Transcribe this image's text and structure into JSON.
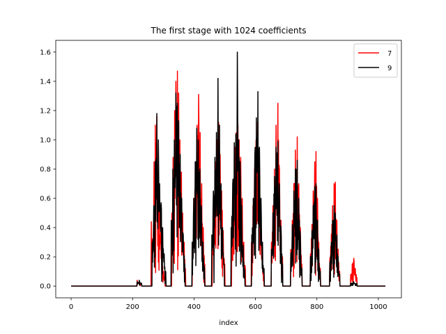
{
  "chart_data": {
    "type": "line",
    "title": "The first stage with 1024 coefficients",
    "xlabel": "index",
    "ylabel": "",
    "xlim": [
      -50,
      1075
    ],
    "ylim": [
      -0.08,
      1.68
    ],
    "xticks": [
      0,
      200,
      400,
      600,
      800,
      1000
    ],
    "yticks": [
      0.0,
      0.2,
      0.4,
      0.6,
      0.8,
      1.0,
      1.2,
      1.4,
      1.6
    ],
    "ytick_labels": [
      "0.0",
      "0.2",
      "0.4",
      "0.6",
      "0.8",
      "1.0",
      "1.2",
      "1.4",
      "1.6"
    ],
    "xtick_labels": [
      "0",
      "200",
      "400",
      "600",
      "800",
      "1000"
    ],
    "grid": false,
    "legend_position": "top-right",
    "n_points": 1024,
    "series": [
      {
        "name": "7",
        "color": "#ff0000",
        "bursts": [
          {
            "center": 222,
            "width": 7,
            "peaks": [
              0.04,
              0.03,
              0.02
            ]
          },
          {
            "center": 283,
            "width": 22,
            "peaks": [
              0.44,
              0.3,
              0.85,
              1.1,
              1.16,
              0.75,
              0.58,
              0.38,
              0.2,
              0.1,
              0.06
            ]
          },
          {
            "center": 350,
            "width": 22,
            "peaks": [
              0.5,
              0.88,
              1.2,
              1.4,
              1.47,
              1.32,
              1.0,
              0.78,
              0.5,
              0.3,
              0.12
            ]
          },
          {
            "center": 415,
            "width": 20,
            "peaks": [
              0.3,
              0.6,
              0.85,
              1.1,
              1.31,
              1.05,
              0.7,
              0.4,
              0.15
            ]
          },
          {
            "center": 480,
            "width": 20,
            "peaks": [
              0.3,
              0.6,
              0.85,
              1.0,
              1.12,
              0.9,
              0.65,
              0.38,
              0.15
            ]
          },
          {
            "center": 545,
            "width": 22,
            "peaks": [
              0.35,
              0.65,
              0.95,
              1.05,
              1.1,
              1.0,
              0.88,
              0.6,
              0.3,
              0.12
            ]
          },
          {
            "center": 607,
            "width": 20,
            "peaks": [
              0.3,
              0.55,
              0.8,
              1.0,
              1.12,
              0.85,
              0.55,
              0.3,
              0.1
            ]
          },
          {
            "center": 670,
            "width": 18,
            "peaks": [
              0.3,
              0.55,
              0.8,
              1.1,
              1.25,
              0.8,
              0.45,
              0.2
            ]
          },
          {
            "center": 733,
            "width": 18,
            "peaks": [
              0.25,
              0.45,
              0.7,
              0.93,
              1.02,
              0.7,
              0.4,
              0.15
            ]
          },
          {
            "center": 795,
            "width": 16,
            "peaks": [
              0.22,
              0.4,
              0.65,
              0.85,
              0.92,
              0.6,
              0.3,
              0.12
            ]
          },
          {
            "center": 858,
            "width": 16,
            "peaks": [
              0.18,
              0.35,
              0.55,
              0.7,
              0.71,
              0.45,
              0.25,
              0.1
            ]
          },
          {
            "center": 920,
            "width": 10,
            "peaks": [
              0.08,
              0.15,
              0.19,
              0.12,
              0.06
            ]
          }
        ]
      },
      {
        "name": "9",
        "color": "#000000",
        "bursts": [
          {
            "center": 222,
            "width": 7,
            "peaks": [
              0.03,
              0.04,
              0.02
            ]
          },
          {
            "center": 286,
            "width": 22,
            "peaks": [
              0.3,
              0.55,
              0.85,
              1.18,
              1.0,
              0.7,
              0.57,
              0.4,
              0.22,
              0.1
            ]
          },
          {
            "center": 348,
            "width": 22,
            "peaks": [
              0.45,
              0.8,
              1.0,
              1.32,
              1.25,
              1.13,
              0.9,
              0.6,
              0.35,
              0.15
            ]
          },
          {
            "center": 414,
            "width": 20,
            "peaks": [
              0.3,
              0.6,
              0.85,
              1.08,
              1.0,
              0.8,
              0.55,
              0.3,
              0.12
            ]
          },
          {
            "center": 478,
            "width": 20,
            "peaks": [
              0.35,
              0.65,
              0.88,
              1.05,
              1.42,
              1.1,
              0.7,
              0.4,
              0.15
            ]
          },
          {
            "center": 543,
            "width": 22,
            "peaks": [
              0.4,
              0.7,
              0.98,
              1.04,
              1.6,
              1.0,
              0.85,
              0.55,
              0.28,
              0.1
            ]
          },
          {
            "center": 608,
            "width": 20,
            "peaks": [
              0.35,
              0.6,
              0.9,
              1.15,
              1.33,
              0.95,
              0.6,
              0.3,
              0.12
            ]
          },
          {
            "center": 670,
            "width": 18,
            "peaks": [
              0.25,
              0.5,
              0.75,
              0.95,
              0.99,
              0.7,
              0.4,
              0.15
            ]
          },
          {
            "center": 733,
            "width": 18,
            "peaks": [
              0.22,
              0.42,
              0.65,
              0.8,
              0.86,
              0.6,
              0.35,
              0.12
            ]
          },
          {
            "center": 795,
            "width": 16,
            "peaks": [
              0.2,
              0.38,
              0.55,
              0.68,
              0.7,
              0.45,
              0.25,
              0.1
            ]
          },
          {
            "center": 858,
            "width": 16,
            "peaks": [
              0.15,
              0.3,
              0.45,
              0.55,
              0.5,
              0.35,
              0.2,
              0.08
            ]
          },
          {
            "center": 920,
            "width": 10,
            "peaks": [
              0.02,
              0.03,
              0.02
            ]
          }
        ]
      }
    ]
  }
}
